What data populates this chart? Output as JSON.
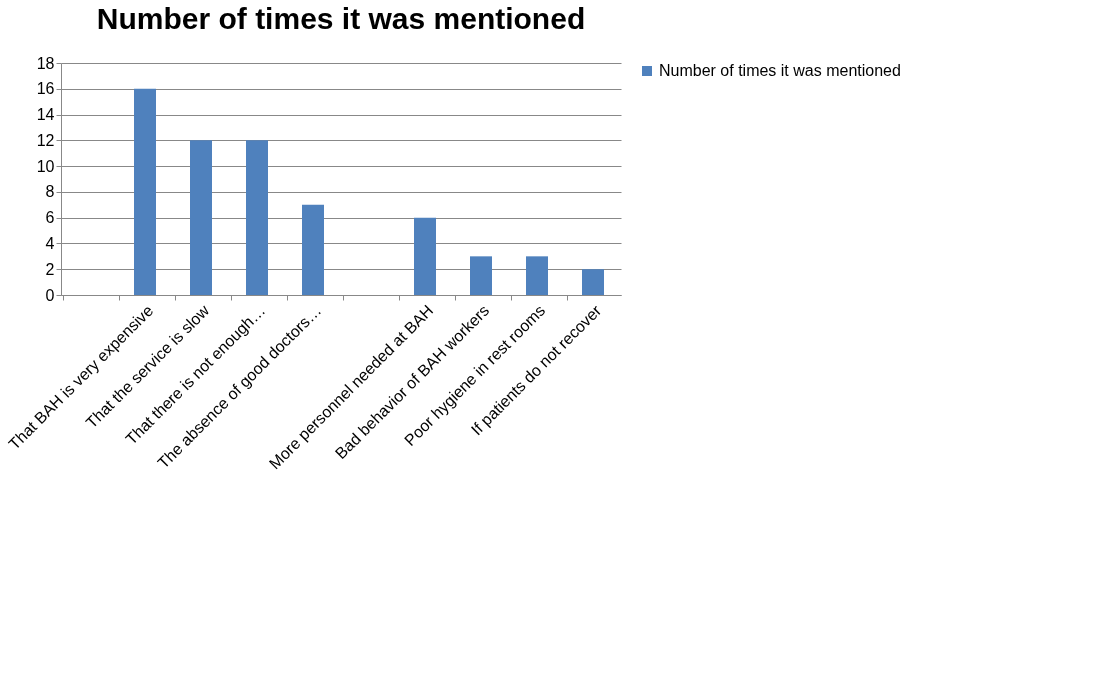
{
  "chart_data": {
    "type": "bar",
    "title": "Number of times it was mentioned",
    "categories": [
      null,
      "That BAH is very expensive",
      "That the service is slow",
      "That there is not enough…",
      "The absence of good doctors…",
      null,
      "More personnel needed at BAH",
      "Bad behavior of BAH workers",
      "Poor hygiene in rest rooms",
      "If patients do not recover"
    ],
    "series": [
      {
        "name": "Number of times it was mentioned",
        "color": "#4f81bd",
        "values": [
          null,
          16,
          12,
          12,
          7,
          null,
          6,
          3,
          3,
          2
        ]
      }
    ],
    "ylim": [
      0,
      18
    ],
    "yticks": [
      0,
      2,
      4,
      6,
      8,
      10,
      12,
      14,
      16,
      18
    ],
    "grid": "y",
    "legend": "right"
  }
}
